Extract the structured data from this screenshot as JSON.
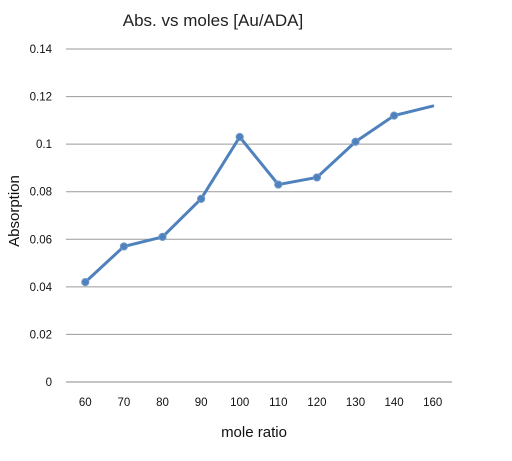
{
  "chart_data": {
    "type": "line",
    "title": "Abs. vs moles [Au/ADA]",
    "xlabel": "mole ratio",
    "ylabel": "Absorption",
    "categories": [
      "60",
      "70",
      "80",
      "90",
      "100",
      "110",
      "120",
      "130",
      "140",
      "160"
    ],
    "series": [
      {
        "values": [
          0.042,
          0.057,
          0.061,
          0.077,
          0.103,
          0.083,
          0.086,
          0.101,
          0.112,
          0.116
        ],
        "markers": [
          true,
          true,
          true,
          true,
          true,
          true,
          true,
          true,
          true,
          false
        ]
      }
    ],
    "ylim": [
      0,
      0.14
    ],
    "yticks": [
      "0",
      "0.02",
      "0.04",
      "0.06",
      "0.08",
      "0.1",
      "0.12",
      "0.14"
    ],
    "grid": true,
    "legend": "none",
    "colors": {
      "series": "#4f81bd",
      "grid": "#9a9a9a",
      "text": "#111111"
    }
  }
}
